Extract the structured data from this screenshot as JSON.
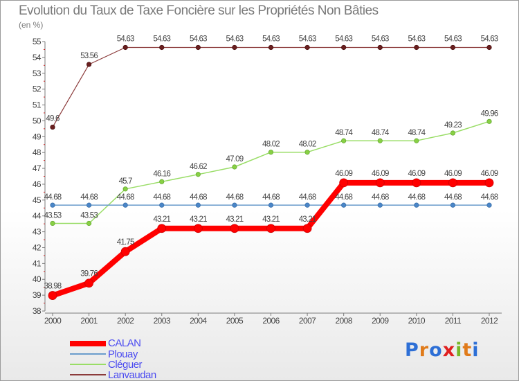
{
  "chart_data": {
    "type": "line",
    "title": "Evolution du Taux de Taxe Foncière sur les Propriétés Non Bâties",
    "subtitle": "(en %)",
    "xlabel": "",
    "ylabel": "(en %)",
    "ylim": [
      38,
      55
    ],
    "grid": false,
    "x": [
      "2000",
      "2001",
      "2002",
      "2003",
      "2004",
      "2005",
      "2006",
      "2007",
      "2008",
      "2009",
      "2010",
      "2011",
      "2012"
    ],
    "y_ticks": [
      "38",
      "39",
      "40",
      "41",
      "42",
      "43",
      "44",
      "45",
      "46",
      "47",
      "48",
      "49",
      "50",
      "51",
      "52",
      "53",
      "54",
      "55"
    ],
    "legend_position": "bottom-left",
    "series": [
      {
        "name": "CALAN",
        "color": "#ff0000",
        "values": [
          38.98,
          39.76,
          41.75,
          43.21,
          43.21,
          43.21,
          43.21,
          43.21,
          46.09,
          46.09,
          46.09,
          46.09,
          46.09
        ],
        "labels": [
          "38.98",
          "39.76",
          "41.75",
          "43.21",
          "43.21",
          "43.21",
          "43.21",
          "43.21",
          "46.09",
          "46.09",
          "46.09",
          "46.09",
          "46.09"
        ]
      },
      {
        "name": "Plouay",
        "color": "#6a9ccc",
        "values": [
          44.68,
          44.68,
          44.68,
          44.68,
          44.68,
          44.68,
          44.68,
          44.68,
          44.68,
          44.68,
          44.68,
          44.68,
          44.68
        ],
        "labels": [
          "44.68",
          "44.68",
          "44.68",
          "44.68",
          "44.68",
          "44.68",
          "44.68",
          "44.68",
          "44.68",
          "44.68",
          "44.68",
          "44.68",
          "44.68"
        ]
      },
      {
        "name": "Cléguer",
        "color": "#99dd66",
        "values": [
          43.53,
          43.53,
          45.7,
          46.16,
          46.62,
          47.09,
          48.02,
          48.02,
          48.74,
          48.74,
          48.74,
          49.23,
          49.96
        ],
        "labels": [
          "43.53",
          "43.53",
          "45.7",
          "46.16",
          "46.62",
          "47.09",
          "48.02",
          "48.02",
          "48.74",
          "48.74",
          "48.74",
          "49.23",
          "49.96"
        ]
      },
      {
        "name": "Lanvaudan",
        "color": "#8b3a3a",
        "values": [
          49.6,
          53.56,
          54.63,
          54.63,
          54.63,
          54.63,
          54.63,
          54.63,
          54.63,
          54.63,
          54.63,
          54.63,
          54.63
        ],
        "labels": [
          "49.6",
          "53.56",
          "54.63",
          "54.63",
          "54.63",
          "54.63",
          "54.63",
          "54.63",
          "54.63",
          "54.63",
          "54.63",
          "54.63",
          "54.63"
        ]
      }
    ]
  },
  "legend": {
    "items": [
      "CALAN",
      "Plouay",
      "Cléguer",
      "Lanvaudan"
    ]
  },
  "logo": {
    "text": "Proxiti",
    "colors": [
      "#2d6fd6",
      "#e07b1a",
      "#2d6fd6",
      "#e02020",
      "#78b828",
      "#e07b1a",
      "#2d6fd6"
    ]
  }
}
